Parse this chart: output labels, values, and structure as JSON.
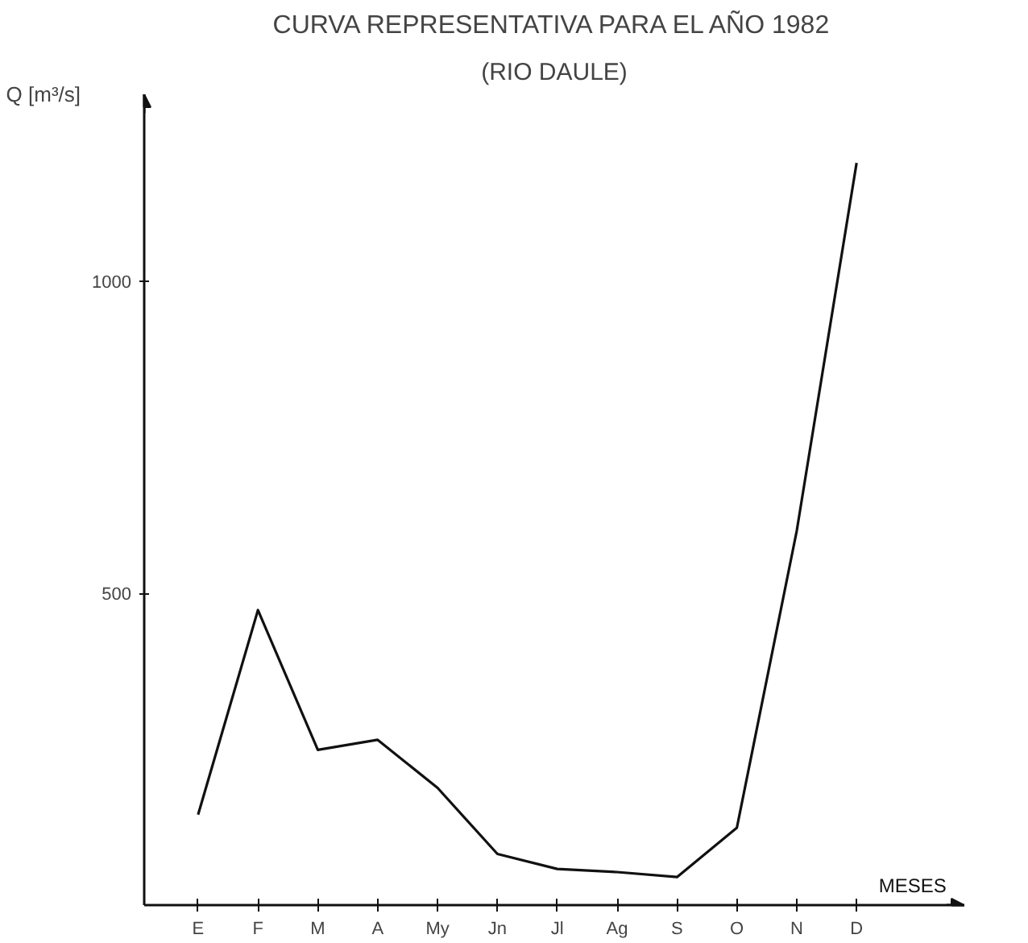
{
  "chart_data": {
    "type": "line",
    "title": "CURVA REPRESENTATIVA PARA EL AÑO 1982",
    "subtitle": "(RIO DAULE)",
    "xlabel": "MESES",
    "ylabel": "Q [m³/s]",
    "categories": [
      "E",
      "F",
      "M",
      "A",
      "My",
      "Jn",
      "Jl",
      "Ag",
      "S",
      "O",
      "N",
      "D"
    ],
    "values": [
      145,
      473,
      249,
      265,
      188,
      82,
      58,
      53,
      45,
      124,
      600,
      1190
    ],
    "color": "#111111",
    "ylim": [
      0,
      1300
    ],
    "yticks": [
      500,
      1000
    ],
    "grid": false
  }
}
